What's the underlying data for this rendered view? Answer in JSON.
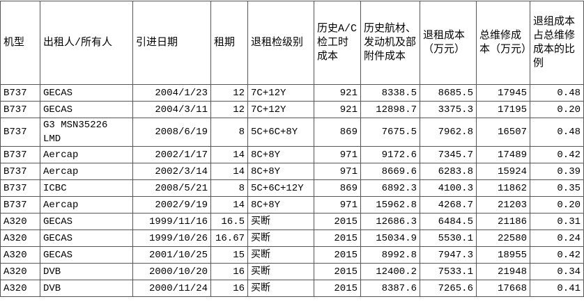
{
  "table": {
    "header": [
      "机型",
      "出租人/所有人",
      "引进日期",
      "租期",
      "退租检级别",
      "历史A/C检工时成本",
      "历史航材、发动机及部附件成本",
      "退租成本（万元）",
      "总维修成本（万元）",
      "退组成本占总维修成本的比例"
    ],
    "rows": [
      [
        "B737",
        "GECAS",
        "2004/1/23",
        "12",
        "7C+12Y",
        "921",
        "8338.5",
        "8685.5",
        "17945",
        "0.48"
      ],
      [
        "B737",
        "GECAS",
        "2004/3/11",
        "12",
        "7C+12Y",
        "921",
        "12898.7",
        "3375.3",
        "17195",
        "0.20"
      ],
      [
        "B737",
        "G3 MSN35226 LMD",
        "2008/6/19",
        "8",
        "5C+6C+8Y",
        "869",
        "7675.5",
        "7962.8",
        "16507",
        "0.48"
      ],
      [
        "B737",
        "Aercap",
        "2002/1/17",
        "14",
        "8C+8Y",
        "971",
        "9172.6",
        "7345.7",
        "17489",
        "0.42"
      ],
      [
        "B737",
        "Aercap",
        "2002/3/14",
        "14",
        "8C+8Y",
        "971",
        "8669.6",
        "6283.8",
        "15924",
        "0.39"
      ],
      [
        "B737",
        "ICBC",
        "2008/5/21",
        "8",
        "5C+6C+12Y",
        "869",
        "6892.3",
        "4100.3",
        "11862",
        "0.35"
      ],
      [
        "B737",
        "Aercap",
        "2002/9/19",
        "14",
        "8C+8Y",
        "971",
        "15962.8",
        "4268.7",
        "21203",
        "0.20"
      ],
      [
        "A320",
        "GECAS",
        "1999/11/16",
        "16.5",
        "买断",
        "2015",
        "12686.3",
        "6484.5",
        "21186",
        "0.31"
      ],
      [
        "A320",
        "GECAS",
        "1999/10/26",
        "16.67",
        "买断",
        "2015",
        "15034.9",
        "5530.1",
        "22580",
        "0.24"
      ],
      [
        "A320",
        "GECAS",
        "2001/10/25",
        "15",
        "买断",
        "2015",
        "8992.8",
        "7947.3",
        "18955",
        "0.42"
      ],
      [
        "A320",
        "DVB",
        "2000/10/20",
        "16",
        "买断",
        "2015",
        "12400.2",
        "7533.1",
        "21948",
        "0.34"
      ],
      [
        "A320",
        "DVB",
        "2000/11/24",
        "16",
        "买断",
        "2015",
        "8387.6",
        "7265.6",
        "17668",
        "0.41"
      ]
    ]
  }
}
